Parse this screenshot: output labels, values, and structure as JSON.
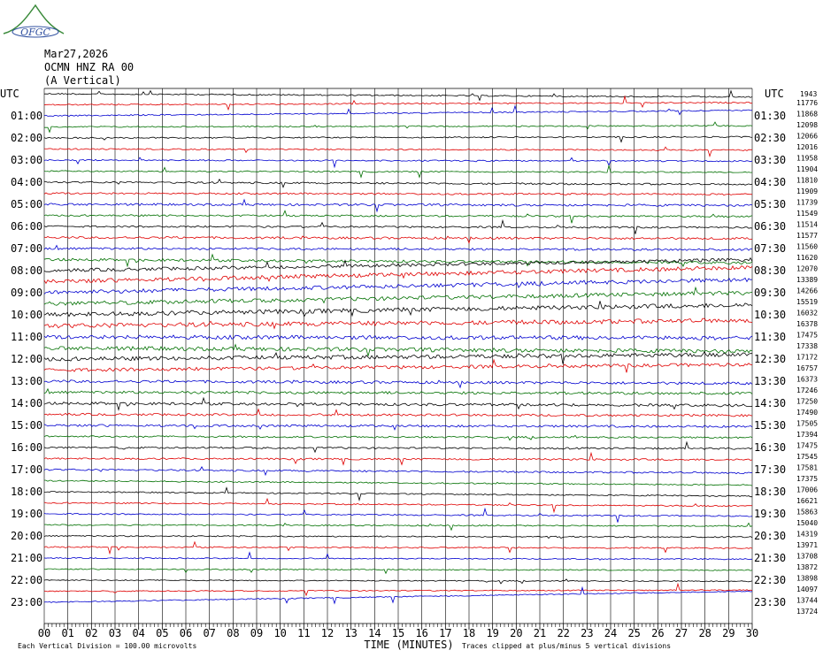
{
  "header": {
    "logo_text": "OFGC",
    "date": "Mar27,2026",
    "station": "OCMN HNZ RA 00",
    "component": "(A Vertical)",
    "left_timezone": "UTC",
    "right_timezone": "UTC",
    "right_corner_label": "1943"
  },
  "footer": {
    "scale_note": "Each Vertical Division =  100.00 microvolts",
    "clip_note": "Traces clipped at plus/minus 5 vertical divisions"
  },
  "chart_data": {
    "type": "line",
    "title": "",
    "xlabel": "TIME (MINUTES)",
    "xlim": [
      0,
      30
    ],
    "x_ticks": [
      "00",
      "01",
      "02",
      "03",
      "04",
      "05",
      "06",
      "07",
      "08",
      "09",
      "10",
      "11",
      "12",
      "13",
      "14",
      "15",
      "16",
      "17",
      "18",
      "19",
      "20",
      "21",
      "22",
      "23",
      "24",
      "25",
      "26",
      "27",
      "28",
      "29",
      "30"
    ],
    "left_hour_labels": [
      "01:00",
      "02:00",
      "03:00",
      "04:00",
      "05:00",
      "06:00",
      "07:00",
      "08:00",
      "09:00",
      "10:00",
      "11:00",
      "12:00",
      "13:00",
      "14:00",
      "15:00",
      "16:00",
      "17:00",
      "18:00",
      "19:00",
      "20:00",
      "21:00",
      "22:00",
      "23:00"
    ],
    "right_hour_labels": [
      "01:30",
      "02:30",
      "03:30",
      "04:30",
      "05:30",
      "06:30",
      "07:30",
      "08:30",
      "09:30",
      "10:30",
      "11:30",
      "12:30",
      "13:30",
      "14:30",
      "15:30",
      "16:30",
      "17:30",
      "18:30",
      "19:30",
      "20:30",
      "21:30",
      "22:30",
      "23:30"
    ],
    "trace_colors": [
      "#000000",
      "#e00000",
      "#0000d0",
      "#007000"
    ],
    "trace_offsets": [
      "11776",
      "11868",
      "12098",
      "12066",
      "12016",
      "11958",
      "11904",
      "11810",
      "11909",
      "11739",
      "11549",
      "11514",
      "11577",
      "11560",
      "11620",
      "12070",
      "13389",
      "14266",
      "15519",
      "16032",
      "16378",
      "17475",
      "17338",
      "17172",
      "16757",
      "16373",
      "17246",
      "17250",
      "17490",
      "17505",
      "17394",
      "17475",
      "17545",
      "17581",
      "17375",
      "17006",
      "16621",
      "15863",
      "15040",
      "14319",
      "13971",
      "13708",
      "13872",
      "13898",
      "14097",
      "13744",
      "13724"
    ],
    "trace_drift_divisions": [
      0.3,
      -0.2,
      -0.5,
      -0.1,
      -0.1,
      0.1,
      0.1,
      0.1,
      0.2,
      0.1,
      0.1,
      0.1,
      0.1,
      0.1,
      0.1,
      0.3,
      -1.0,
      -1.3,
      -1.2,
      -1.0,
      -0.9,
      -0.5,
      0.1,
      0.3,
      -0.4,
      -0.5,
      0.2,
      0.1,
      0.2,
      0.1,
      0.1,
      0.1,
      0.1,
      0.1,
      0.3,
      0.4,
      0.4,
      0.3,
      0.2,
      0.1,
      0.1,
      0.1,
      0.1,
      0.1,
      0.1,
      -0.1,
      -1.0
    ],
    "trace_noise_divisions": [
      0.06,
      0.06,
      0.06,
      0.06,
      0.06,
      0.06,
      0.06,
      0.06,
      0.08,
      0.08,
      0.1,
      0.08,
      0.08,
      0.1,
      0.1,
      0.12,
      0.15,
      0.18,
      0.18,
      0.18,
      0.2,
      0.2,
      0.18,
      0.18,
      0.18,
      0.15,
      0.12,
      0.12,
      0.12,
      0.1,
      0.1,
      0.08,
      0.08,
      0.08,
      0.08,
      0.06,
      0.06,
      0.06,
      0.06,
      0.06,
      0.06,
      0.06,
      0.05,
      0.05,
      0.05,
      0.05,
      0.05
    ]
  }
}
